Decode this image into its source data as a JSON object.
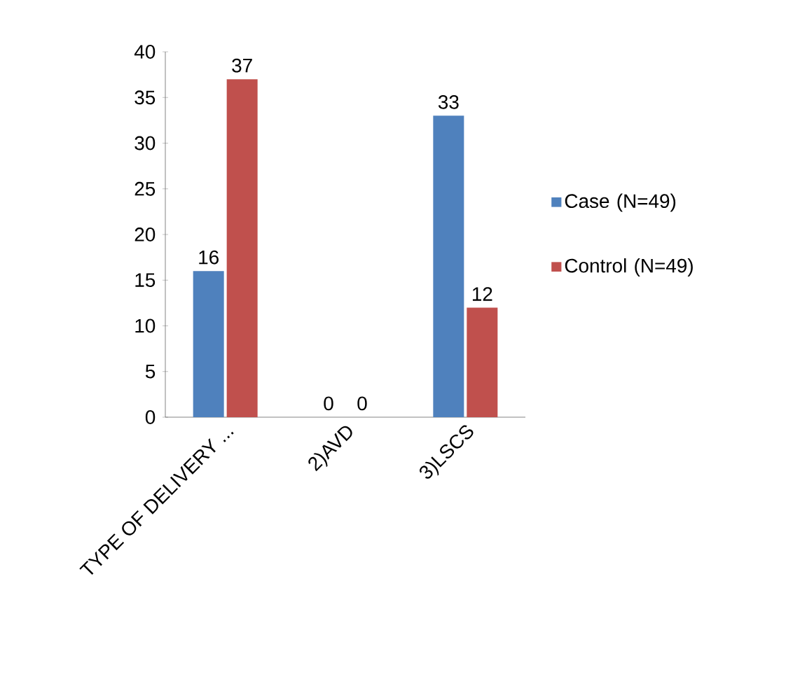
{
  "chart_data": {
    "type": "bar",
    "categories": [
      "TYPE OF DELIVERY ...",
      "2)AVD",
      "3)LSCS"
    ],
    "series": [
      {
        "name": "Case (N=49)",
        "color": "#4f81bd",
        "values": [
          16,
          0,
          33
        ]
      },
      {
        "name": "Control (N=49)",
        "color": "#c0504d",
        "values": [
          37,
          0,
          12
        ]
      }
    ],
    "ylim": [
      0,
      40
    ],
    "yticks": [
      0,
      5,
      10,
      15,
      20,
      25,
      30,
      35,
      40
    ],
    "data_labels": true,
    "legend": "right",
    "grid": false
  }
}
